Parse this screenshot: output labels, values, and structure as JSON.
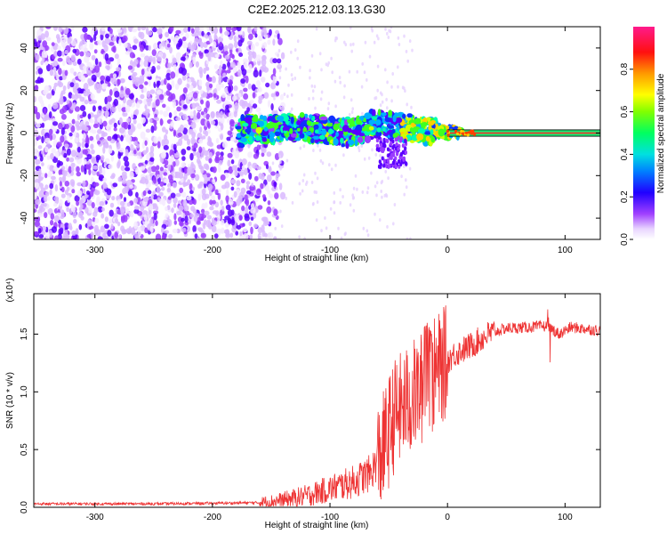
{
  "title": "C2E2.2025.212.03.13.G30",
  "chart_data": [
    {
      "type": "heatmap",
      "xlabel": "Height of straight line (km)",
      "ylabel": "Frequency (Hz)",
      "xlim": [
        -352,
        130
      ],
      "ylim": [
        -50,
        50
      ],
      "xticks": [
        -300,
        -200,
        -100,
        0,
        100
      ],
      "yticks": [
        -40,
        -20,
        0,
        20,
        40
      ],
      "xtick_labels": [
        "-300",
        "-200",
        "-100",
        "0",
        "100"
      ],
      "ytick_labels": [
        "-40",
        "-20",
        "0",
        "20",
        "40"
      ],
      "colorbar": {
        "label": "Normalized spectral amplitude",
        "range": [
          0,
          1
        ],
        "ticks": [
          0.0,
          0.2,
          0.4,
          0.6,
          0.8
        ],
        "tick_labels": [
          "0.0",
          "0.2",
          "0.4",
          "0.6",
          "0.8"
        ],
        "colormap": [
          "#f2e6ff",
          "#8a2be2",
          "#0000ff",
          "#00d0ff",
          "#00ff66",
          "#aaff00",
          "#ffff00",
          "#ff9900",
          "#ff0000",
          "#ff1493"
        ]
      },
      "noise_region_x": [
        -352,
        -140
      ],
      "signal_track": [
        {
          "x": -175,
          "y": 2
        },
        {
          "x": -150,
          "y": 1.5
        },
        {
          "x": -130,
          "y": 3
        },
        {
          "x": -110,
          "y": 2
        },
        {
          "x": -90,
          "y": 0
        },
        {
          "x": -75,
          "y": 1
        },
        {
          "x": -60,
          "y": 5
        },
        {
          "x": -40,
          "y": 3
        },
        {
          "x": -20,
          "y": 1.5
        },
        {
          "x": 0,
          "y": 0.5
        },
        {
          "x": 20,
          "y": 0
        },
        {
          "x": 130,
          "y": 0
        }
      ],
      "steady_band_x": [
        0,
        130
      ],
      "steady_band_y": [
        -1.5,
        1.5
      ]
    },
    {
      "type": "line",
      "xlabel": "Height of straight line (km)",
      "ylabel": "SNR (10 * v/v)",
      "multiplier_label": "(x10⁴)",
      "xlim": [
        -352,
        130
      ],
      "ylim": [
        0,
        1.85
      ],
      "xticks": [
        -300,
        -200,
        -100,
        0,
        100
      ],
      "yticks": [
        0.0,
        0.5,
        1.0,
        1.5
      ],
      "xtick_labels": [
        "-300",
        "-200",
        "-100",
        "0",
        "100"
      ],
      "ytick_labels": [
        "0.0",
        "0.5",
        "1.0",
        "1.5"
      ],
      "series": [
        {
          "color": "#ee3333",
          "points": [
            [
              -352,
              0.03
            ],
            [
              -300,
              0.03
            ],
            [
              -250,
              0.03
            ],
            [
              -200,
              0.035
            ],
            [
              -160,
              0.04
            ],
            [
              -140,
              0.06
            ],
            [
              -120,
              0.1
            ],
            [
              -100,
              0.16
            ],
            [
              -80,
              0.22
            ],
            [
              -65,
              0.3
            ],
            [
              -55,
              0.5
            ],
            [
              -45,
              0.8
            ],
            [
              -35,
              0.9
            ],
            [
              -25,
              1.0
            ],
            [
              -15,
              1.1
            ],
            [
              -5,
              1.22
            ],
            [
              5,
              1.32
            ],
            [
              20,
              1.4
            ],
            [
              35,
              1.5
            ],
            [
              50,
              1.55
            ],
            [
              70,
              1.56
            ],
            [
              85,
              1.57
            ],
            [
              95,
              1.5
            ],
            [
              105,
              1.56
            ],
            [
              130,
              1.53
            ]
          ]
        }
      ]
    }
  ]
}
